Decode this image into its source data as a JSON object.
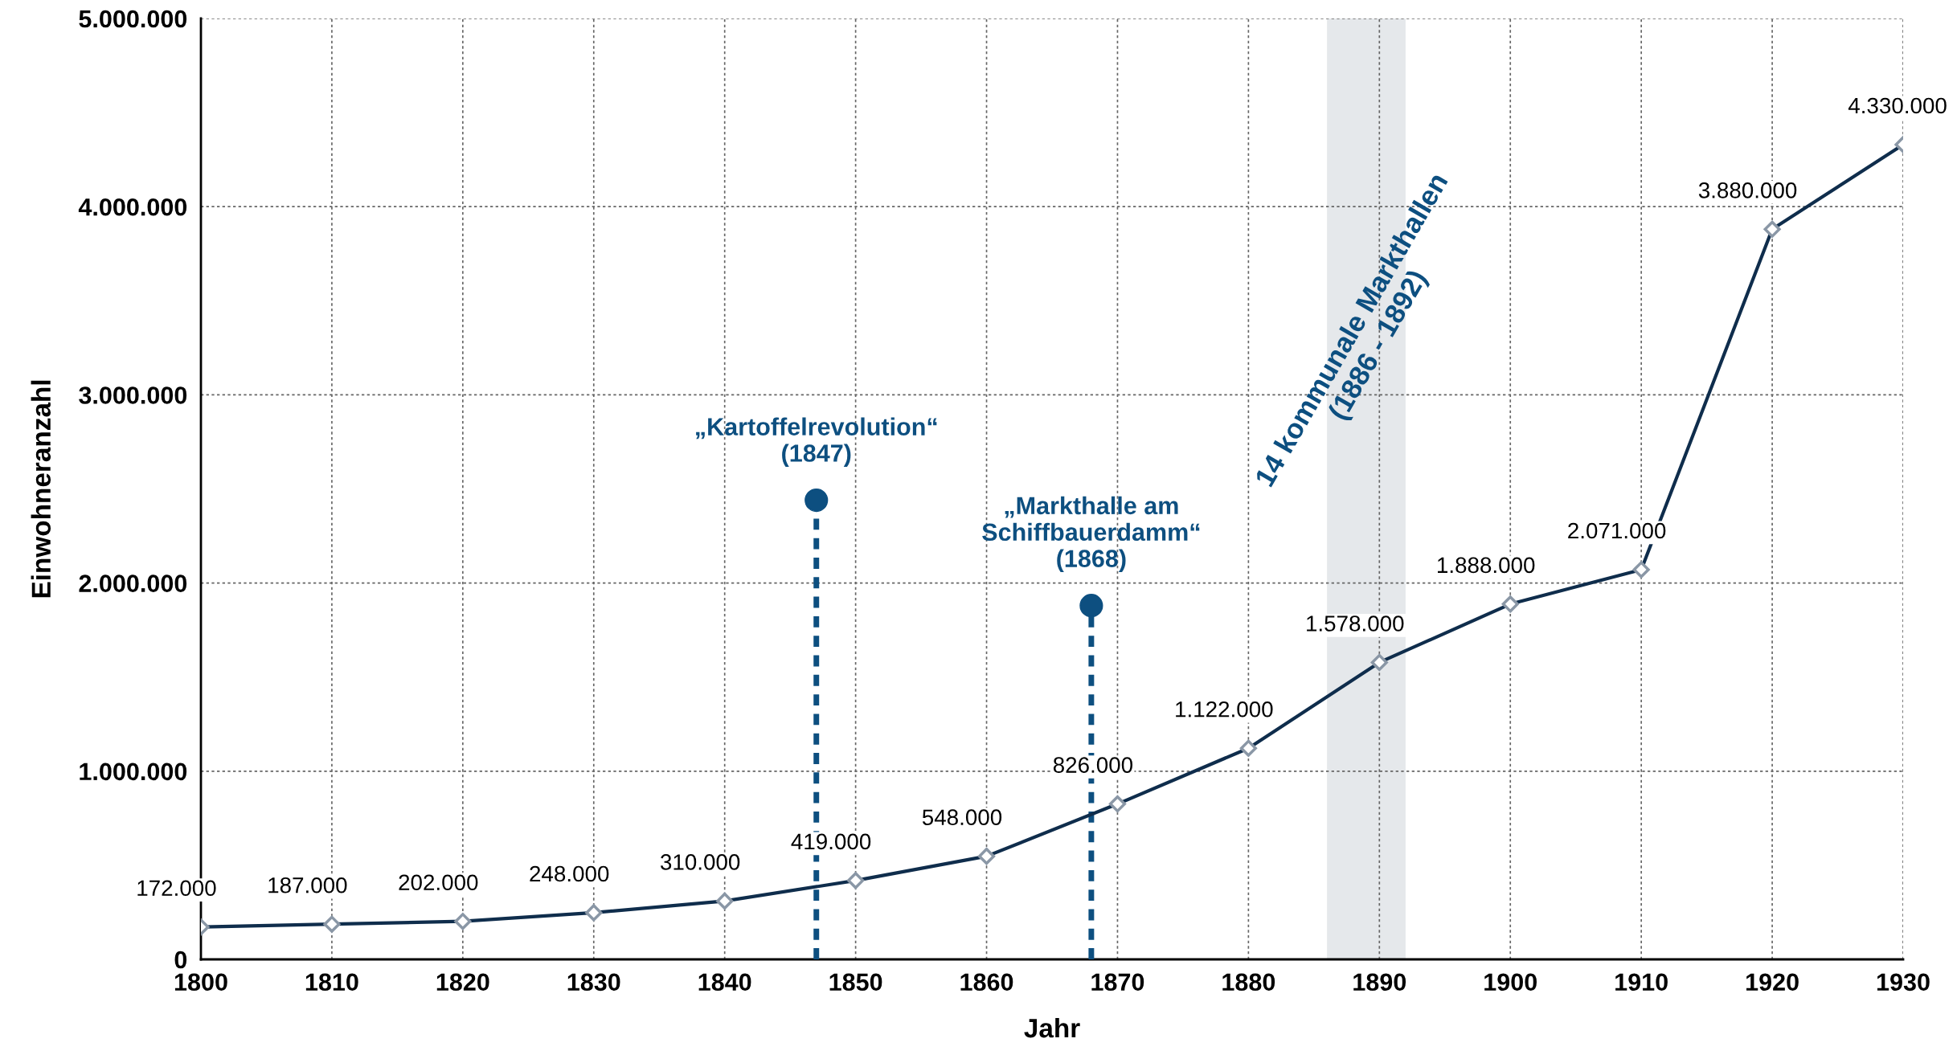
{
  "chart_data": {
    "type": "line",
    "xlabel": "Jahr",
    "ylabel": "Einwohneranzahl",
    "x": [
      1800,
      1810,
      1820,
      1830,
      1840,
      1850,
      1860,
      1870,
      1880,
      1890,
      1900,
      1910,
      1920,
      1930
    ],
    "series": [
      {
        "color": "#0f2d4c",
        "values": [
          172000,
          187000,
          202000,
          248000,
          310000,
          419000,
          548000,
          826000,
          1122000,
          1578000,
          1888000,
          2071000,
          3880000,
          4330000
        ],
        "value_labels": [
          "172.000",
          "187.000",
          "202.000",
          "248.000",
          "310.000",
          "419.000",
          "548.000",
          "826.000",
          "1.122.000",
          "1.578.000",
          "1.888.000",
          "2.071.000",
          "3.880.000",
          "4.330.000"
        ]
      }
    ],
    "xlim": [
      1800,
      1930
    ],
    "xticks": [
      1800,
      1810,
      1820,
      1830,
      1840,
      1850,
      1860,
      1870,
      1880,
      1890,
      1900,
      1910,
      1920,
      1930
    ],
    "ylim": [
      0,
      5000000
    ],
    "yticks": [
      0,
      {
        "value": 1000000,
        "label": "1.000.000"
      },
      {
        "value": 2000000,
        "label": "2.000.000"
      },
      {
        "value": 3000000,
        "label": "3.000.000"
      },
      {
        "value": 4000000,
        "label": "4.000.000"
      },
      {
        "value": 5000000,
        "label": "5.000.000"
      }
    ],
    "grid": true,
    "marker": "diamond",
    "line_style": "solid",
    "legend": false,
    "bands": [
      {
        "axis": "x",
        "from": 1886,
        "to": 1892,
        "label": "14 kommunale Markthallen\n(1886 - 1892)",
        "color": "#e5e8eb"
      }
    ],
    "ref_lines": [
      {
        "axis": "x",
        "value": 1847,
        "color": "#0d4f80",
        "line_style": "dashed"
      },
      {
        "axis": "x",
        "value": 1868,
        "color": "#0d4f80",
        "line_style": "dashed"
      }
    ],
    "annotations": [
      {
        "text": "„Kartoffelrevolution“\n(1847)",
        "x": 1847,
        "y": 2440000
      },
      {
        "text": "„Markthalle am\nSchiffbauerdamm“\n(1868)",
        "x": 1868,
        "y": 1880000
      }
    ]
  }
}
